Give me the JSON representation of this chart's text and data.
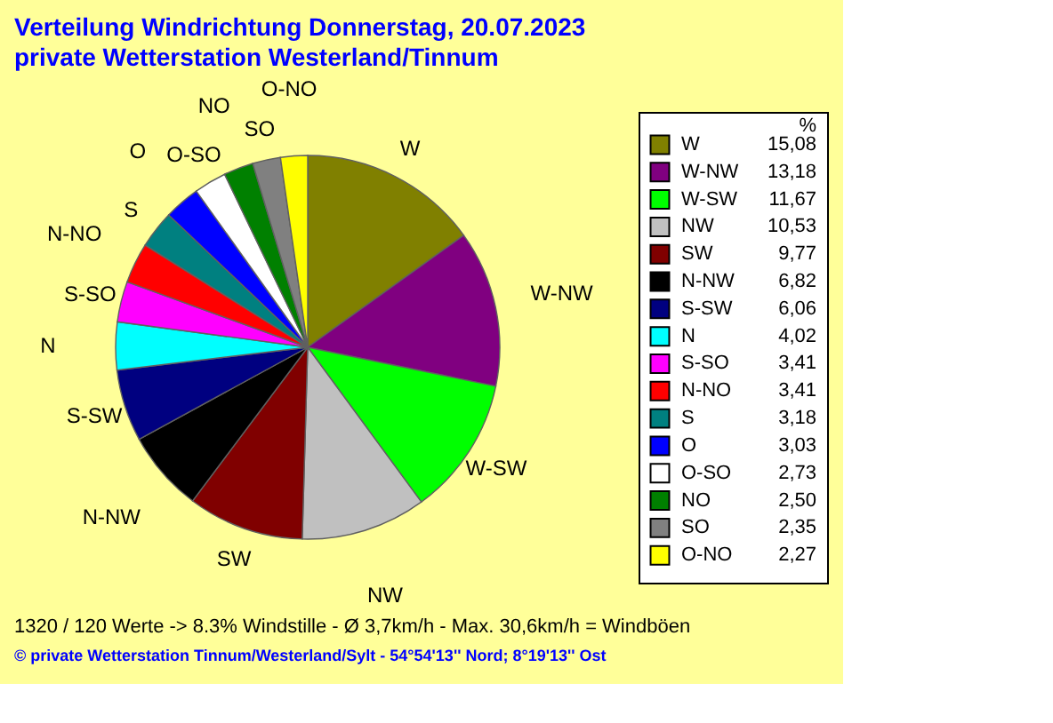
{
  "chart_data": {
    "type": "pie",
    "title": "Verteilung Windrichtung   Donnerstag, 20.07.2023",
    "subtitle": "private Wetterstation Westerland/Tinnum",
    "legend_title": "%",
    "categories": [
      "W",
      "W-NW",
      "W-SW",
      "NW",
      "SW",
      "N-NW",
      "S-SW",
      "N",
      "S-SO",
      "N-NO",
      "S",
      "O",
      "O-SO",
      "NO",
      "SO",
      "O-NO"
    ],
    "values": [
      15.08,
      13.18,
      11.67,
      10.53,
      9.77,
      6.82,
      6.06,
      4.02,
      3.41,
      3.41,
      3.18,
      3.03,
      2.73,
      2.5,
      2.35,
      2.27
    ],
    "value_labels": [
      "15,08",
      "13,18",
      "11,67",
      "10,53",
      "9,77",
      "6,82",
      "6,06",
      "4,02",
      "3,41",
      "3,41",
      "3,18",
      "3,03",
      "2,73",
      "2,50",
      "2,35",
      "2,27"
    ],
    "colors": [
      "#808000",
      "#800080",
      "#00ff00",
      "#c0c0c0",
      "#800000",
      "#000000",
      "#000080",
      "#00ffff",
      "#ff00ff",
      "#ff0000",
      "#008080",
      "#0000ff",
      "#ffffff",
      "#008000",
      "#808080",
      "#ffff00"
    ],
    "legend": "right",
    "annotations": [
      "1320 / 120 Werte  -> 8.3% Windstille   -   Ø 3,7km/h  -  Max. 30,6km/h = Windböen",
      "© private Wetterstation Tinnum/Westerland/Sylt  -  54°54'13'' Nord; 8°19'13'' Ost"
    ]
  }
}
